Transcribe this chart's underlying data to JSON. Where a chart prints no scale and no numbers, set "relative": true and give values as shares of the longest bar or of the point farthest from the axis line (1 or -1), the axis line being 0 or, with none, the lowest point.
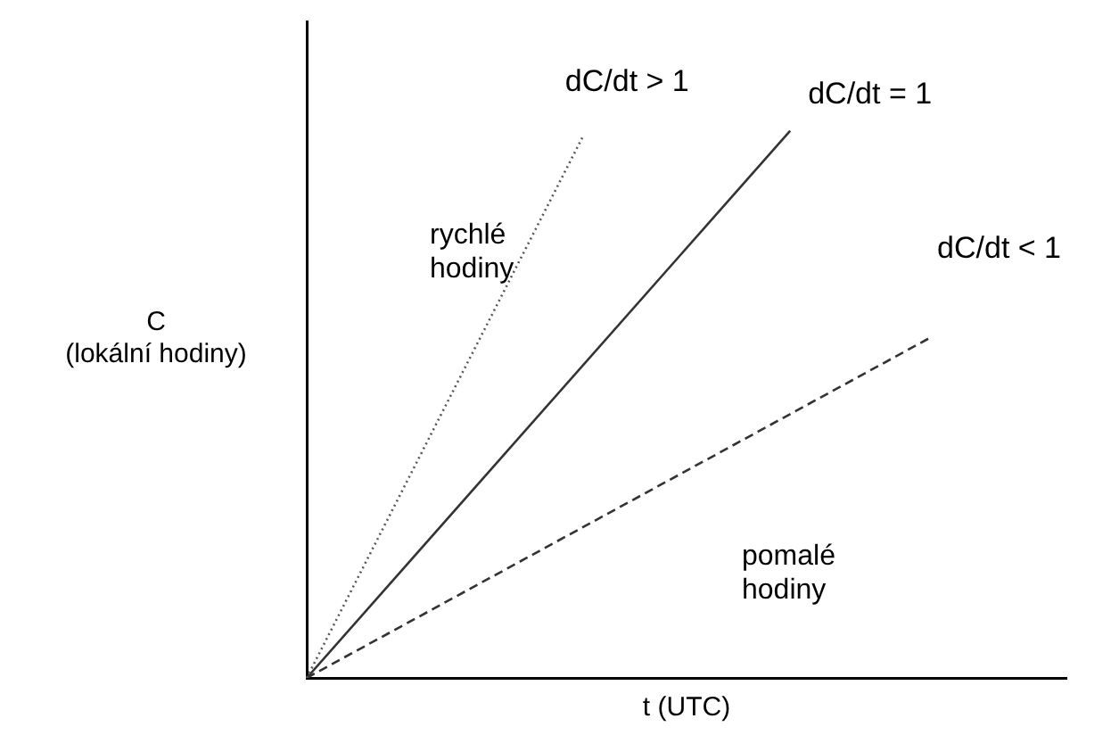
{
  "chart_data": {
    "type": "line",
    "relative": true,
    "xlabel": "t (UTC)",
    "ylabel": "C\n(lokální hodiny)",
    "categories": [
      null,
      null,
      null,
      null,
      null,
      null,
      null,
      null,
      null,
      null,
      null,
      null
    ],
    "series": [
      {
        "name": "dC/dt > 1",
        "color": "#555555",
        "line_style": "dotted",
        "values": [
          0,
          null,
          null,
          null,
          0.99,
          null,
          null,
          null,
          null,
          null,
          null,
          null
        ]
      },
      {
        "name": "dC/dt = 1",
        "color": "#333333",
        "line_style": "solid",
        "values": [
          0,
          null,
          null,
          null,
          null,
          null,
          null,
          1,
          null,
          null,
          null,
          null
        ]
      },
      {
        "name": "dC/dt < 1",
        "color": "#333333",
        "line_style": "dashed",
        "values": [
          0,
          null,
          null,
          null,
          null,
          null,
          null,
          null,
          null,
          0.62,
          null,
          null
        ]
      }
    ],
    "annotations": [
      "rychlé\nhodiny",
      "pomalé\nhodiny"
    ],
    "legend": false,
    "marker": "none",
    "grid": false
  }
}
